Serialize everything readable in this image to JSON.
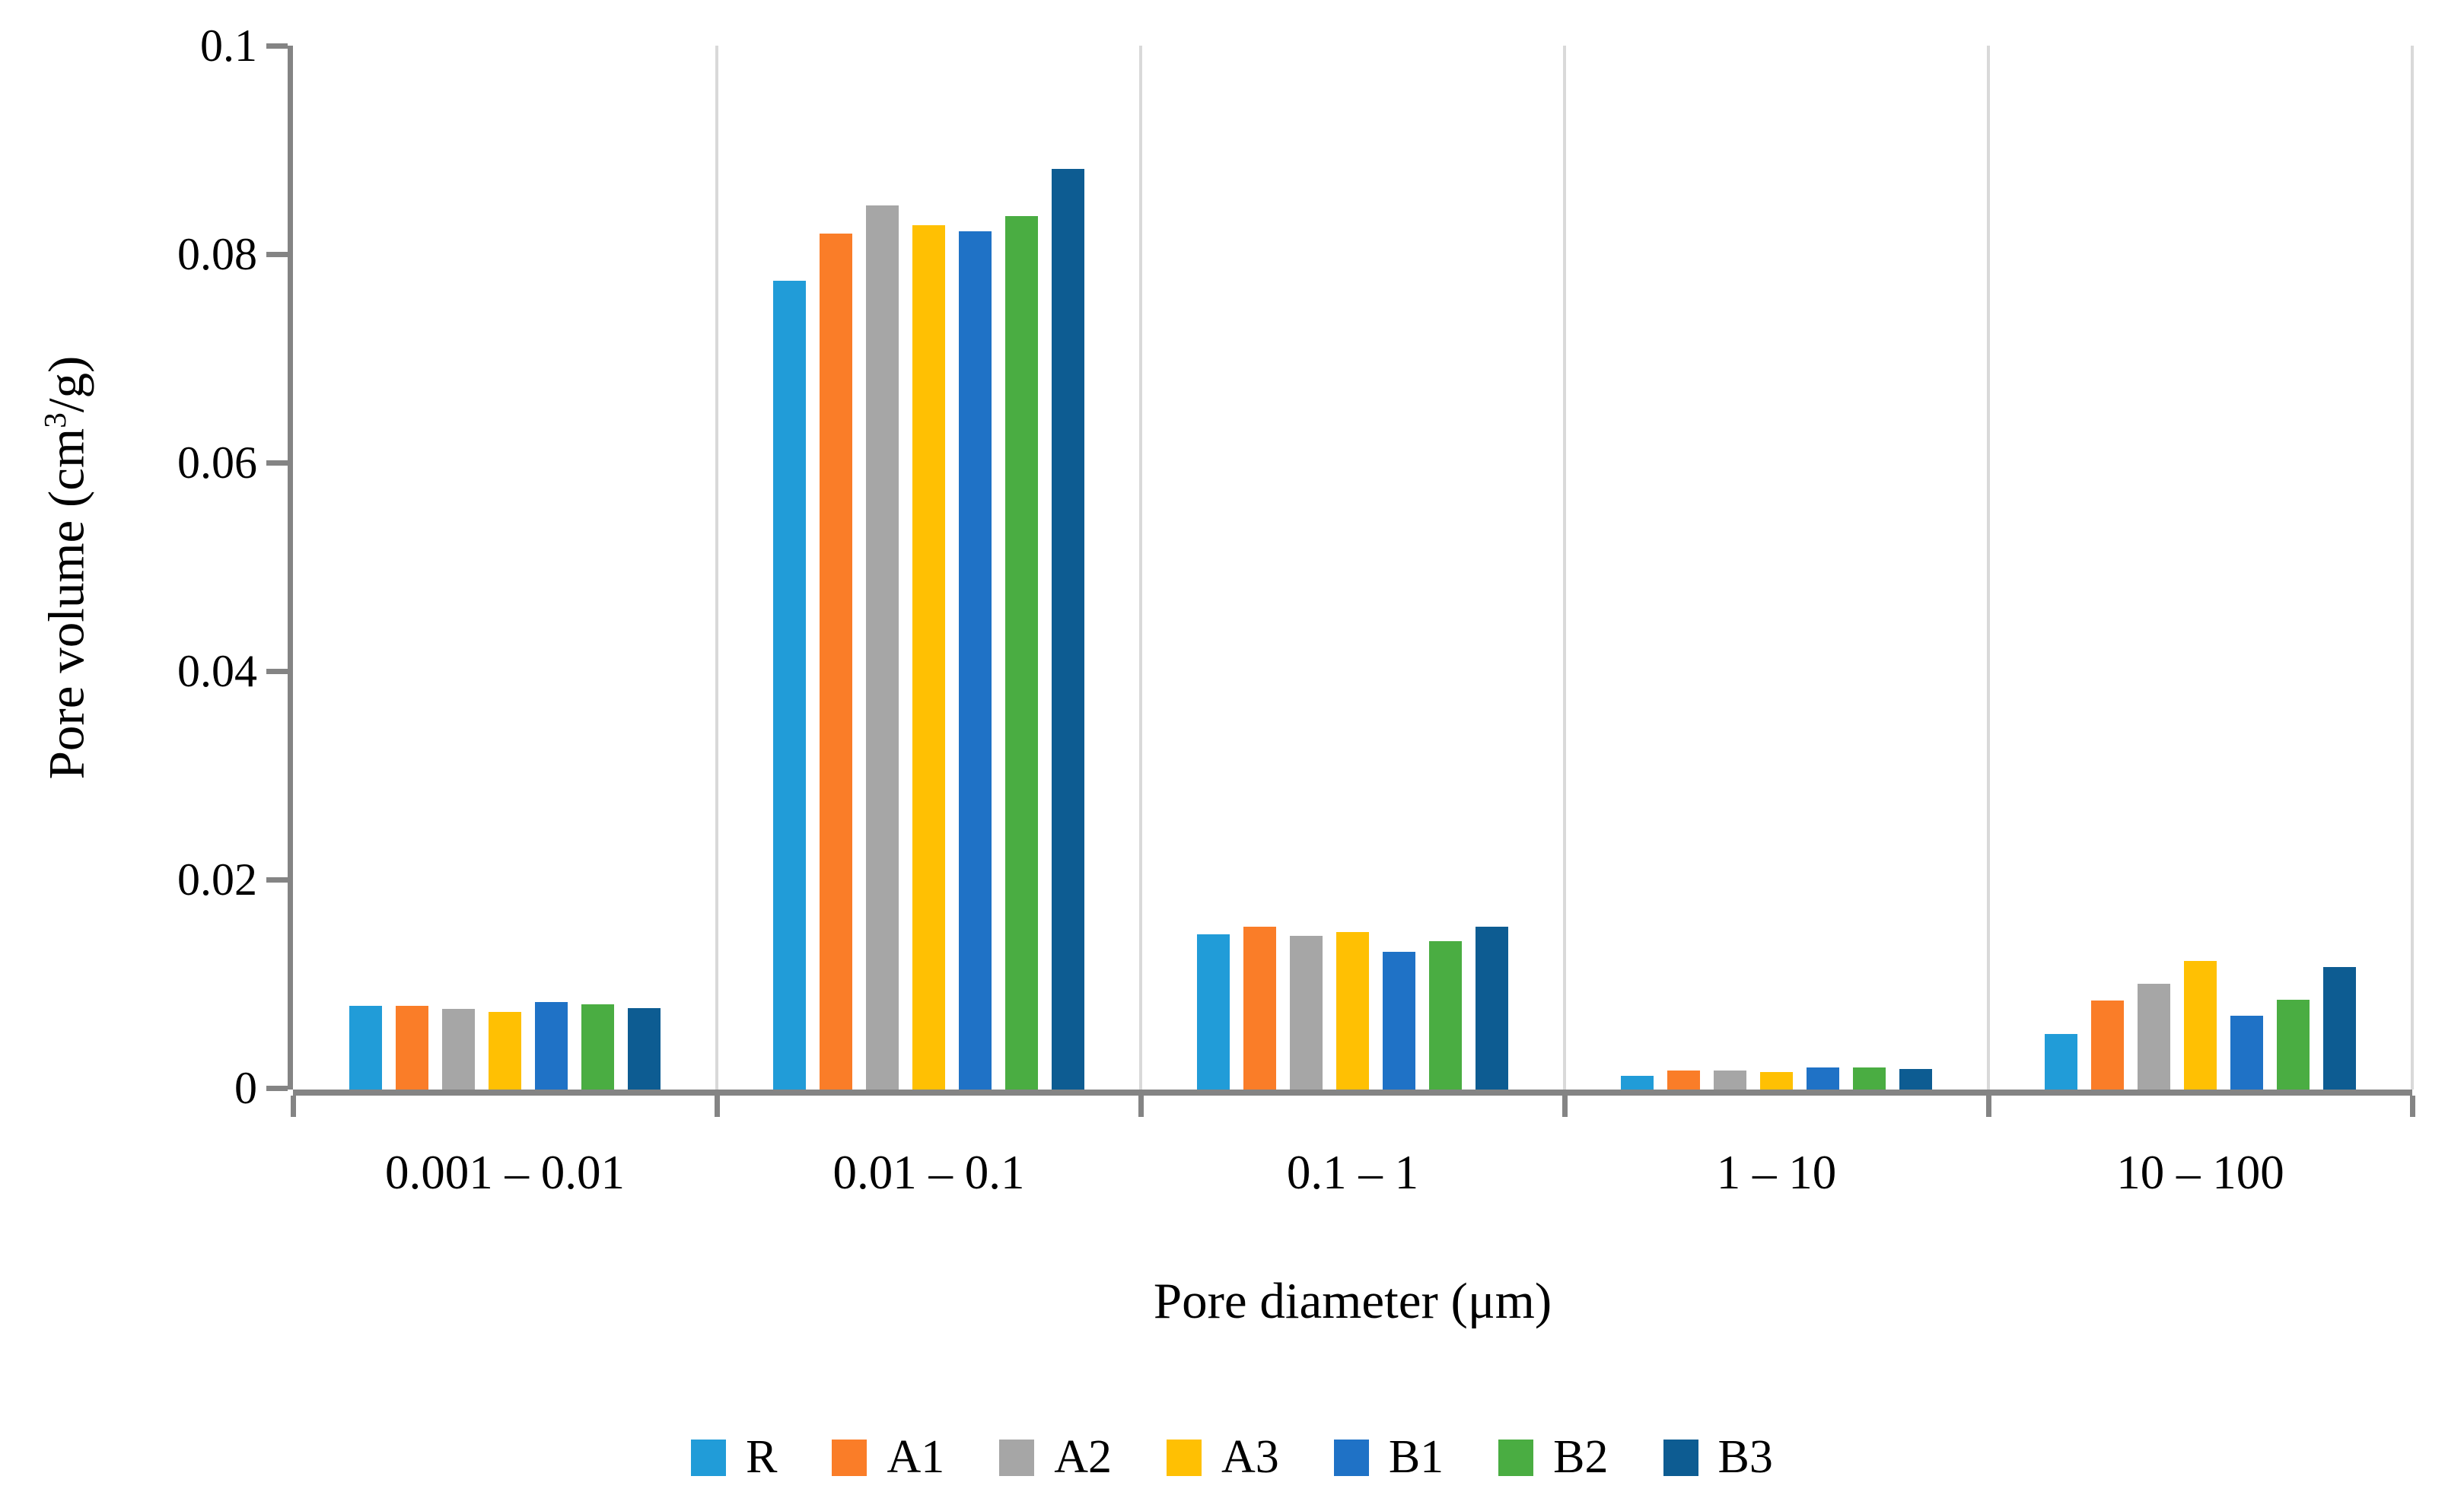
{
  "chart_data": {
    "type": "bar",
    "title": "",
    "xlabel": "Pore diameter (μm)",
    "ylabel": "Pore volume (cm³/g)",
    "ylabel_parts": {
      "prefix": "Pore volume (cm",
      "superscript": "3",
      "suffix": "/g)"
    },
    "categories": [
      "0.001 – 0.01",
      "0.01 – 0.1",
      "0.1 – 1",
      "1 – 10",
      "10 – 100"
    ],
    "series": [
      {
        "name": "R",
        "color": "#219CD8",
        "values": [
          0.008,
          0.0775,
          0.0149,
          0.0013,
          0.0053
        ]
      },
      {
        "name": "A1",
        "color": "#FA7D28",
        "values": [
          0.008,
          0.082,
          0.0156,
          0.0018,
          0.0085
        ]
      },
      {
        "name": "A2",
        "color": "#A6A6A6",
        "values": [
          0.0077,
          0.0847,
          0.0147,
          0.0018,
          0.0101
        ]
      },
      {
        "name": "A3",
        "color": "#FFC003",
        "values": [
          0.0074,
          0.0828,
          0.0151,
          0.0017,
          0.0123
        ]
      },
      {
        "name": "B1",
        "color": "#1F72C6",
        "values": [
          0.0084,
          0.0822,
          0.0132,
          0.0021,
          0.0071
        ]
      },
      {
        "name": "B2",
        "color": "#4AAD42",
        "values": [
          0.0082,
          0.0837,
          0.0142,
          0.0021,
          0.0086
        ]
      },
      {
        "name": "B3",
        "color": "#0D5C92",
        "values": [
          0.0078,
          0.0882,
          0.0156,
          0.002,
          0.0117
        ]
      }
    ],
    "ylim": [
      0,
      0.1
    ],
    "yticks": [
      {
        "value": 0.0,
        "label": "0"
      },
      {
        "value": 0.02,
        "label": "0.02"
      },
      {
        "value": 0.04,
        "label": "0.04"
      },
      {
        "value": 0.06,
        "label": "0.06"
      },
      {
        "value": 0.08,
        "label": "0.08"
      },
      {
        "value": 0.1,
        "label": "0.1"
      }
    ],
    "legend_position": "bottom",
    "grid": "vertical-category-separators"
  },
  "style_colors": {
    "axis": "#848484",
    "separator": "#D9D9D9",
    "text": "#000000",
    "background": "#FFFFFF"
  }
}
